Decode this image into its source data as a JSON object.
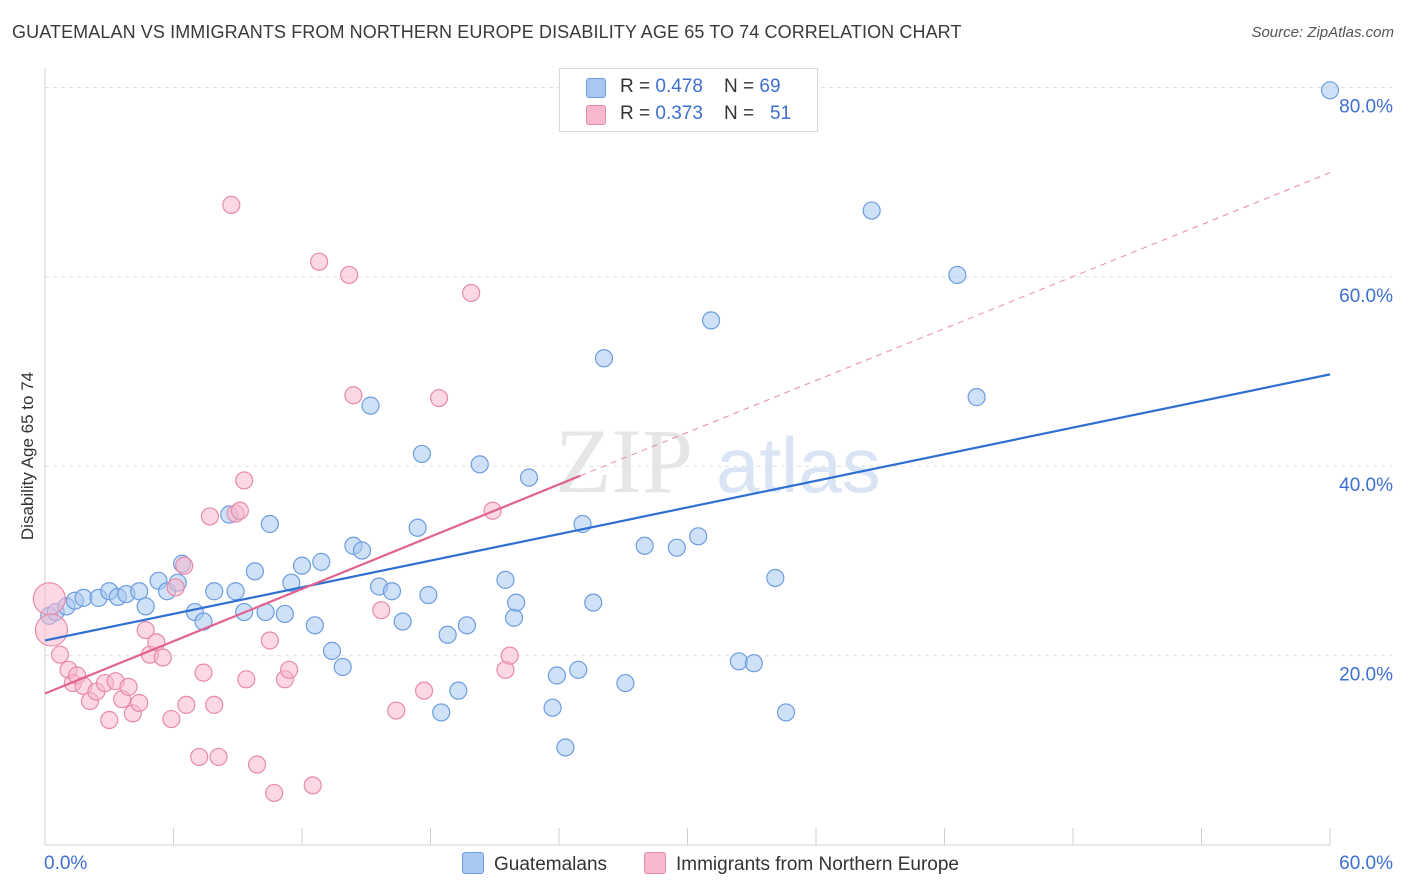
{
  "title": "GUATEMALAN VS IMMIGRANTS FROM NORTHERN EUROPE DISABILITY AGE 65 TO 74 CORRELATION CHART",
  "source": "Source: ZipAtlas.com",
  "watermark": {
    "zip": "ZIP",
    "atlas": "atlas"
  },
  "legend": {
    "rows": [
      {
        "r_label": "R = ",
        "r_value": "0.478",
        "n_label": "N = ",
        "n_value": "69"
      },
      {
        "r_label": "R = ",
        "r_value": "0.373",
        "n_label": "N = ",
        "n_value": "51"
      }
    ]
  },
  "bottom_legend": [
    "Guatemalans",
    "Immigrants from Northern Europe"
  ],
  "colors": {
    "blue_fill": "#a8c8f0",
    "blue_stroke": "#6d9de0",
    "blue_line": "#2f6fd1",
    "pink_fill": "#f7b8cc",
    "pink_stroke": "#e88aa8",
    "pink_line": "#e0628f",
    "tick_label": "#3d6fd0",
    "grid": "#e0e0e0"
  },
  "chart_data": {
    "type": "scatter",
    "title": "GUATEMALAN VS IMMIGRANTS FROM NORTHERN EUROPE DISABILITY AGE 65 TO 74 CORRELATION CHART",
    "xlabel": "",
    "ylabel": "Disability Age 65 to 74",
    "xlim": [
      0,
      60
    ],
    "ylim": [
      0,
      81
    ],
    "x_tick_labels": [
      "0.0%",
      "60.0%"
    ],
    "y_ticks": [
      20,
      40,
      60,
      80
    ],
    "y_tick_labels": [
      "20.0%",
      "40.0%",
      "60.0%",
      "80.0%"
    ],
    "grid": true,
    "legend_position": "top-center",
    "series": [
      {
        "name": "Guatemalans",
        "r": 0.478,
        "n": 69,
        "trend": {
          "x": [
            0,
            60
          ],
          "y": [
            21.6,
            49.7
          ]
        },
        "points": [
          [
            0.2,
            24.2
          ],
          [
            0.5,
            24.6
          ],
          [
            1.0,
            25.2
          ],
          [
            1.4,
            25.8
          ],
          [
            1.8,
            26.1
          ],
          [
            2.5,
            26.1
          ],
          [
            3.0,
            26.8
          ],
          [
            3.4,
            26.2
          ],
          [
            3.8,
            26.5
          ],
          [
            4.4,
            26.8
          ],
          [
            4.7,
            25.2
          ],
          [
            5.3,
            27.9
          ],
          [
            5.7,
            26.8
          ],
          [
            6.2,
            27.7
          ],
          [
            6.4,
            29.7
          ],
          [
            7.0,
            24.6
          ],
          [
            7.4,
            23.6
          ],
          [
            7.9,
            26.8
          ],
          [
            8.6,
            34.9
          ],
          [
            8.9,
            26.8
          ],
          [
            9.3,
            24.6
          ],
          [
            9.8,
            28.9
          ],
          [
            10.3,
            24.6
          ],
          [
            10.5,
            33.9
          ],
          [
            11.2,
            24.4
          ],
          [
            11.5,
            27.7
          ],
          [
            12.0,
            29.5
          ],
          [
            12.6,
            23.2
          ],
          [
            12.9,
            29.9
          ],
          [
            13.4,
            20.5
          ],
          [
            13.9,
            18.8
          ],
          [
            14.4,
            31.6
          ],
          [
            14.8,
            31.1
          ],
          [
            15.2,
            46.4
          ],
          [
            15.6,
            27.3
          ],
          [
            16.2,
            26.8
          ],
          [
            16.7,
            23.6
          ],
          [
            17.4,
            33.5
          ],
          [
            17.6,
            41.3
          ],
          [
            17.9,
            26.4
          ],
          [
            18.5,
            14.0
          ],
          [
            18.8,
            22.2
          ],
          [
            19.3,
            16.3
          ],
          [
            19.7,
            23.2
          ],
          [
            20.3,
            40.2
          ],
          [
            21.5,
            28.0
          ],
          [
            21.9,
            24.0
          ],
          [
            22.0,
            25.6
          ],
          [
            22.6,
            38.8
          ],
          [
            23.7,
            14.5
          ],
          [
            23.9,
            17.9
          ],
          [
            24.3,
            10.3
          ],
          [
            24.9,
            18.5
          ],
          [
            25.1,
            33.9
          ],
          [
            25.6,
            25.6
          ],
          [
            26.1,
            51.4
          ],
          [
            27.1,
            17.1
          ],
          [
            28.0,
            31.6
          ],
          [
            29.5,
            31.4
          ],
          [
            30.5,
            32.6
          ],
          [
            31.1,
            55.4
          ],
          [
            32.4,
            19.4
          ],
          [
            33.1,
            19.2
          ],
          [
            34.1,
            28.2
          ],
          [
            34.6,
            14.0
          ],
          [
            38.6,
            67.0
          ],
          [
            42.6,
            60.2
          ],
          [
            43.5,
            47.3
          ],
          [
            60.0,
            79.7
          ]
        ]
      },
      {
        "name": "Immigrants from Northern Europe",
        "r": 0.373,
        "n": 51,
        "trend": {
          "x": [
            0,
            25
          ],
          "y": [
            16.0,
            39.0
          ]
        },
        "trend_dashed": {
          "x": [
            25,
            60
          ],
          "y": [
            39.0,
            71.0
          ]
        },
        "points": [
          [
            0.2,
            26.0
          ],
          [
            0.3,
            22.7
          ],
          [
            0.7,
            20.1
          ],
          [
            1.1,
            18.5
          ],
          [
            1.3,
            17.1
          ],
          [
            1.5,
            17.9
          ],
          [
            1.8,
            16.8
          ],
          [
            2.1,
            15.2
          ],
          [
            2.4,
            16.2
          ],
          [
            2.8,
            17.1
          ],
          [
            3.0,
            13.2
          ],
          [
            3.3,
            17.3
          ],
          [
            3.6,
            15.4
          ],
          [
            3.9,
            16.7
          ],
          [
            4.1,
            13.9
          ],
          [
            4.4,
            15.0
          ],
          [
            4.7,
            22.7
          ],
          [
            4.9,
            20.1
          ],
          [
            5.2,
            21.4
          ],
          [
            5.5,
            19.8
          ],
          [
            5.9,
            13.3
          ],
          [
            6.1,
            27.2
          ],
          [
            6.5,
            29.5
          ],
          [
            6.6,
            14.8
          ],
          [
            7.2,
            9.3
          ],
          [
            7.4,
            18.2
          ],
          [
            7.7,
            34.7
          ],
          [
            7.9,
            14.8
          ],
          [
            8.1,
            9.3
          ],
          [
            8.7,
            67.6
          ],
          [
            8.9,
            35.0
          ],
          [
            9.1,
            35.3
          ],
          [
            9.3,
            38.5
          ],
          [
            9.4,
            17.5
          ],
          [
            9.9,
            8.5
          ],
          [
            10.5,
            21.6
          ],
          [
            10.7,
            5.5
          ],
          [
            11.2,
            17.5
          ],
          [
            11.4,
            18.5
          ],
          [
            12.5,
            6.3
          ],
          [
            12.8,
            61.6
          ],
          [
            14.2,
            60.2
          ],
          [
            14.4,
            47.5
          ],
          [
            15.7,
            24.8
          ],
          [
            16.4,
            14.2
          ],
          [
            17.7,
            16.3
          ],
          [
            18.4,
            47.2
          ],
          [
            19.9,
            58.3
          ],
          [
            20.9,
            35.3
          ],
          [
            21.5,
            18.5
          ],
          [
            21.7,
            20.0
          ]
        ]
      }
    ]
  }
}
